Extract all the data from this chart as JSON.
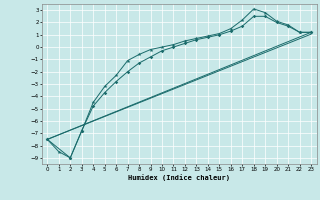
{
  "title": "",
  "xlabel": "Humidex (Indice chaleur)",
  "background_color": "#c8e8e8",
  "grid_color": "#ffffff",
  "line_color": "#1a6b6b",
  "xlim": [
    -0.5,
    23.5
  ],
  "ylim": [
    -9.5,
    3.5
  ],
  "yticks": [
    3,
    2,
    1,
    0,
    -1,
    -2,
    -3,
    -4,
    -5,
    -6,
    -7,
    -8,
    -9
  ],
  "xticks": [
    0,
    1,
    2,
    3,
    4,
    5,
    6,
    7,
    8,
    9,
    10,
    11,
    12,
    13,
    14,
    15,
    16,
    17,
    18,
    19,
    20,
    21,
    22,
    23
  ],
  "line1_x": [
    0,
    1,
    2,
    3,
    4,
    5,
    6,
    7,
    8,
    9,
    10,
    11,
    12,
    13,
    14,
    15,
    16,
    17,
    18,
    19,
    20,
    21,
    22,
    23
  ],
  "line1_y": [
    -7.5,
    -8.5,
    -9.0,
    -6.8,
    -4.5,
    -3.2,
    -2.3,
    -1.1,
    -0.6,
    -0.2,
    0.0,
    0.2,
    0.5,
    0.7,
    0.9,
    1.1,
    1.5,
    2.2,
    3.1,
    2.8,
    2.1,
    1.8,
    1.2,
    1.2
  ],
  "line2_x": [
    0,
    2,
    3,
    4,
    5,
    6,
    7,
    8,
    9,
    10,
    11,
    12,
    13,
    14,
    15,
    16,
    17,
    18,
    19,
    20,
    21,
    22,
    23
  ],
  "line2_y": [
    -7.5,
    -9.0,
    -6.8,
    -4.8,
    -3.7,
    -2.8,
    -2.0,
    -1.3,
    -0.8,
    -0.3,
    0.0,
    0.3,
    0.6,
    0.8,
    1.0,
    1.3,
    1.7,
    2.5,
    2.5,
    2.0,
    1.7,
    1.2,
    1.2
  ],
  "line3_x": [
    0,
    23
  ],
  "line3_y": [
    -7.5,
    1.2
  ],
  "line4_x": [
    0,
    23
  ],
  "line4_y": [
    -7.5,
    1.05
  ]
}
